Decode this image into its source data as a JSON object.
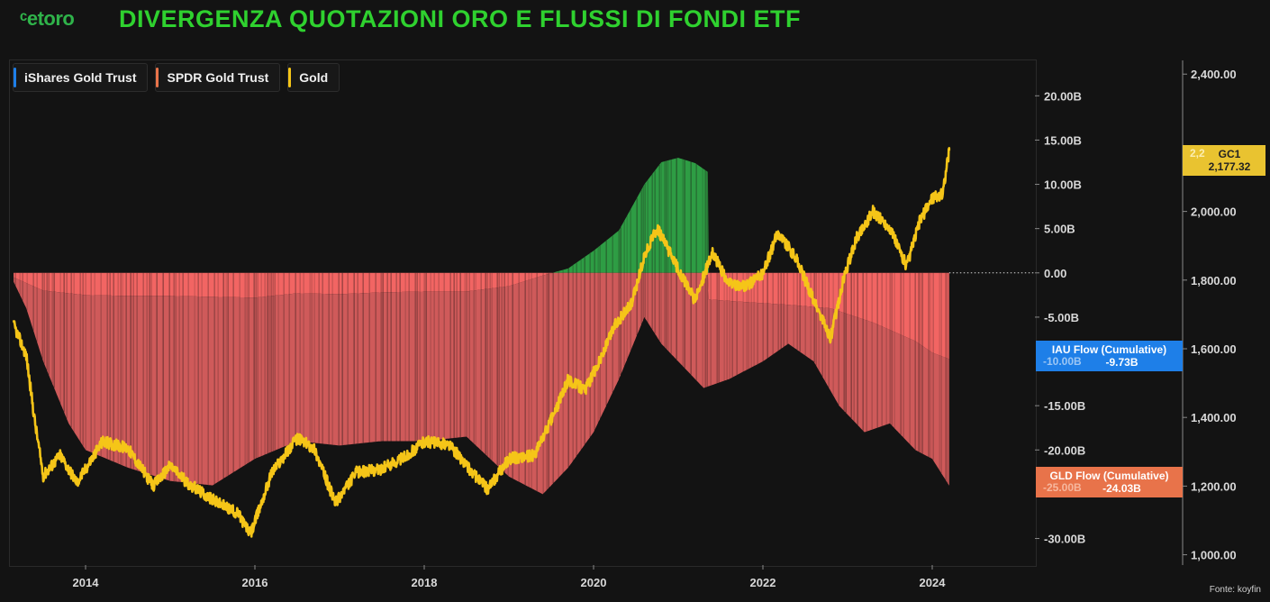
{
  "header": {
    "logo_text": "ᶜetoro",
    "title": "DIVERGENZA QUOTAZIONI ORO E FLUSSI DI FONDI ETF"
  },
  "legend": [
    {
      "label": "iShares Gold Trust",
      "color": "#1e7fe8"
    },
    {
      "label": "SPDR Gold Trust",
      "color": "#e8734a"
    },
    {
      "label": "Gold",
      "color": "#f5c518"
    }
  ],
  "badges": {
    "gold": {
      "name": "GC1",
      "value": "2,177.32",
      "ghost": "2,2",
      "color": "#e9c330"
    },
    "iau": {
      "name": "IAU Flow (Cumulative)",
      "value": "-9.73B",
      "ghost": "-10.00B",
      "color": "#1e7fe8"
    },
    "gld": {
      "name": "GLD Flow (Cumulative)",
      "value": "-24.03B",
      "ghost": "-25.00B",
      "color": "#e8734a"
    }
  },
  "footer": {
    "source": "Fonte: koyfin"
  },
  "chart_data": {
    "type": "area",
    "x_ticks": [
      "2014",
      "2016",
      "2018",
      "2020",
      "2022",
      "2024"
    ],
    "flow_axis": {
      "ticks": [
        "20.00B",
        "15.00B",
        "10.00B",
        "5.00B",
        "0.00",
        "-5.00B",
        "-15.00B",
        "-20.00B",
        "-30.00B"
      ],
      "range": [
        -33,
        24
      ]
    },
    "price_axis": {
      "ticks": [
        "2,400.00",
        "2,000.00",
        "1,800.00",
        "1,600.00",
        "1,400.00",
        "1,200.00",
        "1,000.00"
      ],
      "range": [
        970,
        2440
      ]
    },
    "series": [
      {
        "name": "iShares Gold Trust",
        "axis": "flow",
        "x": [
          2013.15,
          2013.5,
          2014.0,
          2014.5,
          2015.0,
          2015.5,
          2016.0,
          2016.5,
          2017.0,
          2017.5,
          2018.0,
          2018.5,
          2019.0,
          2019.4,
          2019.7,
          2020.0,
          2020.3,
          2020.6,
          2020.8,
          2021.0,
          2021.2,
          2021.35,
          2021.36,
          2021.8,
          2022.3,
          2022.8,
          2023.3,
          2023.8,
          2024.0,
          2024.2
        ],
        "values": [
          -0.5,
          -2.0,
          -2.5,
          -2.6,
          -2.6,
          -2.7,
          -2.8,
          -2.3,
          -2.4,
          -2.2,
          -2.1,
          -2.1,
          -1.5,
          -0.3,
          0.5,
          2.5,
          4.8,
          10.0,
          12.5,
          13.0,
          12.4,
          11.4,
          -3.0,
          -3.3,
          -3.6,
          -4.0,
          -5.6,
          -7.7,
          -9.0,
          -9.73
        ]
      },
      {
        "name": "SPDR Gold Trust",
        "axis": "flow",
        "x": [
          2013.15,
          2013.3,
          2013.5,
          2013.8,
          2014.0,
          2014.5,
          2015.0,
          2015.5,
          2016.0,
          2016.5,
          2017.0,
          2017.5,
          2018.0,
          2018.5,
          2019.0,
          2019.4,
          2019.7,
          2020.0,
          2020.3,
          2020.6,
          2020.8,
          2021.0,
          2021.3,
          2021.6,
          2022.0,
          2022.3,
          2022.6,
          2022.9,
          2023.2,
          2023.5,
          2023.8,
          2024.0,
          2024.2
        ],
        "values": [
          -1.0,
          -4.0,
          -10.0,
          -17.0,
          -20.0,
          -22.0,
          -23.5,
          -24.0,
          -21.0,
          -19.0,
          -19.5,
          -19.0,
          -19.0,
          -18.5,
          -23.0,
          -25.0,
          -22.0,
          -18.0,
          -12.0,
          -5.0,
          -8.0,
          -10.0,
          -13.0,
          -12.0,
          -10.0,
          -8.0,
          -10.0,
          -15.0,
          -18.0,
          -17.0,
          -20.0,
          -21.0,
          -24.03
        ]
      },
      {
        "name": "Gold",
        "axis": "price",
        "x": [
          2013.15,
          2013.3,
          2013.4,
          2013.5,
          2013.7,
          2013.9,
          2014.2,
          2014.5,
          2014.8,
          2015.0,
          2015.2,
          2015.5,
          2015.8,
          2015.95,
          2016.2,
          2016.5,
          2016.7,
          2016.95,
          2017.2,
          2017.5,
          2017.8,
          2018.0,
          2018.3,
          2018.6,
          2018.75,
          2019.0,
          2019.3,
          2019.55,
          2019.7,
          2019.9,
          2020.1,
          2020.25,
          2020.45,
          2020.6,
          2020.75,
          2020.9,
          2021.0,
          2021.2,
          2021.4,
          2021.6,
          2021.8,
          2022.0,
          2022.18,
          2022.4,
          2022.6,
          2022.8,
          2022.95,
          2023.1,
          2023.3,
          2023.5,
          2023.7,
          2023.85,
          2024.0,
          2024.12,
          2024.2
        ],
        "values": [
          1670,
          1580,
          1390,
          1230,
          1290,
          1210,
          1330,
          1310,
          1200,
          1260,
          1210,
          1160,
          1120,
          1060,
          1240,
          1340,
          1310,
          1150,
          1240,
          1250,
          1290,
          1330,
          1320,
          1230,
          1190,
          1280,
          1290,
          1420,
          1510,
          1480,
          1580,
          1670,
          1730,
          1870,
          1950,
          1880,
          1830,
          1740,
          1880,
          1790,
          1780,
          1820,
          1940,
          1860,
          1740,
          1630,
          1800,
          1920,
          2000,
          1950,
          1840,
          1970,
          2040,
          2050,
          2177.32
        ]
      }
    ]
  }
}
